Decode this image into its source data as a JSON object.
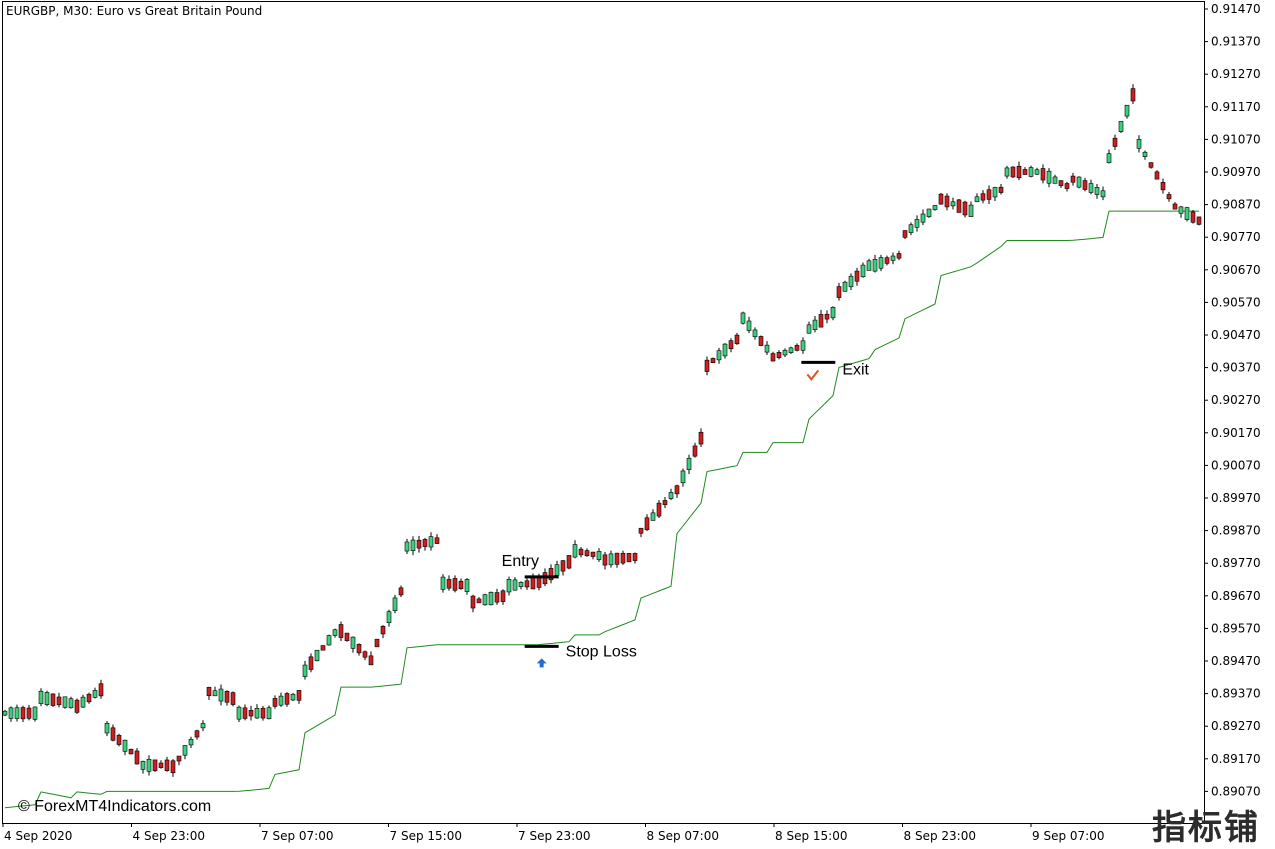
{
  "header": {
    "title": "EURGBP, M30:  Euro vs Great Britain Pound"
  },
  "watermark": {
    "text": "© ForexMT4Indicators.com",
    "logo_text": "指标铺"
  },
  "colors": {
    "background": "#ffffff",
    "bull": "#3cd07f",
    "bear": "#cc1f1f",
    "wick": "#000000",
    "trail_line": "#1f8a1f",
    "arrow": "#1f6fd1",
    "check": "#e0531f"
  },
  "chart_data": {
    "type": "candlestick",
    "symbol": "EURGBP",
    "timeframe": "M30",
    "y_axis": {
      "min": 0.8901,
      "max": 0.9152,
      "ticks": [
        "0.91470",
        "0.91370",
        "0.91270",
        "0.91170",
        "0.91070",
        "0.90970",
        "0.90870",
        "0.90770",
        "0.90670",
        "0.90570",
        "0.90470",
        "0.90370",
        "0.90270",
        "0.90170",
        "0.90070",
        "0.89970",
        "0.89870",
        "0.89770",
        "0.89670",
        "0.89570",
        "0.89470",
        "0.89370",
        "0.89270",
        "0.89170",
        "0.89070"
      ]
    },
    "x_axis": {
      "labels": [
        "4 Sep 2020",
        "4 Sep 23:00",
        "7 Sep 07:00",
        "7 Sep 15:00",
        "7 Sep 23:00",
        "8 Sep 07:00",
        "8 Sep 15:00",
        "8 Sep 23:00",
        "9 Sep 07:00"
      ]
    },
    "anchors": [
      [
        0.8931,
        0.8931
      ],
      [
        0.8936,
        0.8934
      ],
      [
        0.8932,
        0.8939
      ],
      [
        0.8927,
        0.8917
      ],
      [
        0.8915,
        0.8915
      ],
      [
        0.8914,
        0.8928
      ],
      [
        0.8938,
        0.8935
      ],
      [
        0.8931,
        0.8931
      ],
      [
        0.8934,
        0.8937
      ],
      [
        0.8944,
        0.8957
      ],
      [
        0.8957,
        0.8947
      ],
      [
        0.8949,
        0.8971
      ],
      [
        0.8982,
        0.8984
      ],
      [
        0.8971,
        0.897
      ],
      [
        0.8965,
        0.8967
      ],
      [
        0.897,
        0.8971
      ],
      [
        0.8971,
        0.8978
      ],
      [
        0.8981,
        0.8979
      ],
      [
        0.8978,
        0.8979
      ],
      [
        0.8986,
        0.8998
      ],
      [
        0.8996,
        0.9018
      ],
      [
        0.9037,
        0.9046
      ],
      [
        0.9054,
        0.9041
      ],
      [
        0.904,
        0.9044
      ],
      [
        0.9048,
        0.9055
      ],
      [
        0.906,
        0.9069
      ],
      [
        0.9068,
        0.9072
      ],
      [
        0.9078,
        0.9087
      ],
      [
        0.9089,
        0.9085
      ],
      [
        0.9088,
        0.9092
      ],
      [
        0.9097,
        0.9097
      ],
      [
        0.9097,
        0.9092
      ],
      [
        0.9095,
        0.909
      ],
      [
        0.9098,
        0.9125
      ],
      [
        0.9106,
        0.9088
      ],
      [
        0.9087,
        0.9081
      ]
    ],
    "trail_line": [
      [
        0.8902,
        0.8903
      ],
      [
        0.8907,
        0.8905
      ],
      [
        0.8907,
        0.8906
      ],
      [
        0.8907,
        0.8907
      ],
      [
        0.8907,
        0.8907
      ],
      [
        0.8907,
        0.8907
      ],
      [
        0.8907,
        0.8907
      ],
      [
        0.8907,
        0.8908
      ],
      [
        0.8912,
        0.8914
      ],
      [
        0.8925,
        0.8931
      ],
      [
        0.8939,
        0.8939
      ],
      [
        0.8939,
        0.894
      ],
      [
        0.8951,
        0.8952
      ],
      [
        0.8952,
        0.8952
      ],
      [
        0.8952,
        0.8952
      ],
      [
        0.8952,
        0.8952
      ],
      [
        0.8952,
        0.8953
      ],
      [
        0.8955,
        0.8955
      ],
      [
        0.8956,
        0.896
      ],
      [
        0.8966,
        0.897
      ],
      [
        0.8984,
        0.8997
      ],
      [
        0.9005,
        0.9007
      ],
      [
        0.9011,
        0.9011
      ],
      [
        0.9014,
        0.9014
      ],
      [
        0.902,
        0.903
      ],
      [
        0.9037,
        0.904
      ],
      [
        0.9042,
        0.9047
      ],
      [
        0.9052,
        0.9057
      ],
      [
        0.9065,
        0.9068
      ],
      [
        0.9068,
        0.9075
      ],
      [
        0.9076,
        0.9076
      ],
      [
        0.9076,
        0.9076
      ],
      [
        0.9076,
        0.9077
      ],
      [
        0.9085,
        0.9085
      ],
      [
        0.9085,
        0.9085
      ],
      [
        0.9085,
        0.9085
      ]
    ],
    "annotations": {
      "entry": {
        "label": "Entry",
        "price": 0.89728,
        "bar": 16.1
      },
      "stop_loss": {
        "label": "Stop Loss",
        "price": 0.89515,
        "bar": 16.1
      },
      "exit": {
        "label": "Exit",
        "price": 0.90386,
        "bar": 24.4
      }
    }
  }
}
